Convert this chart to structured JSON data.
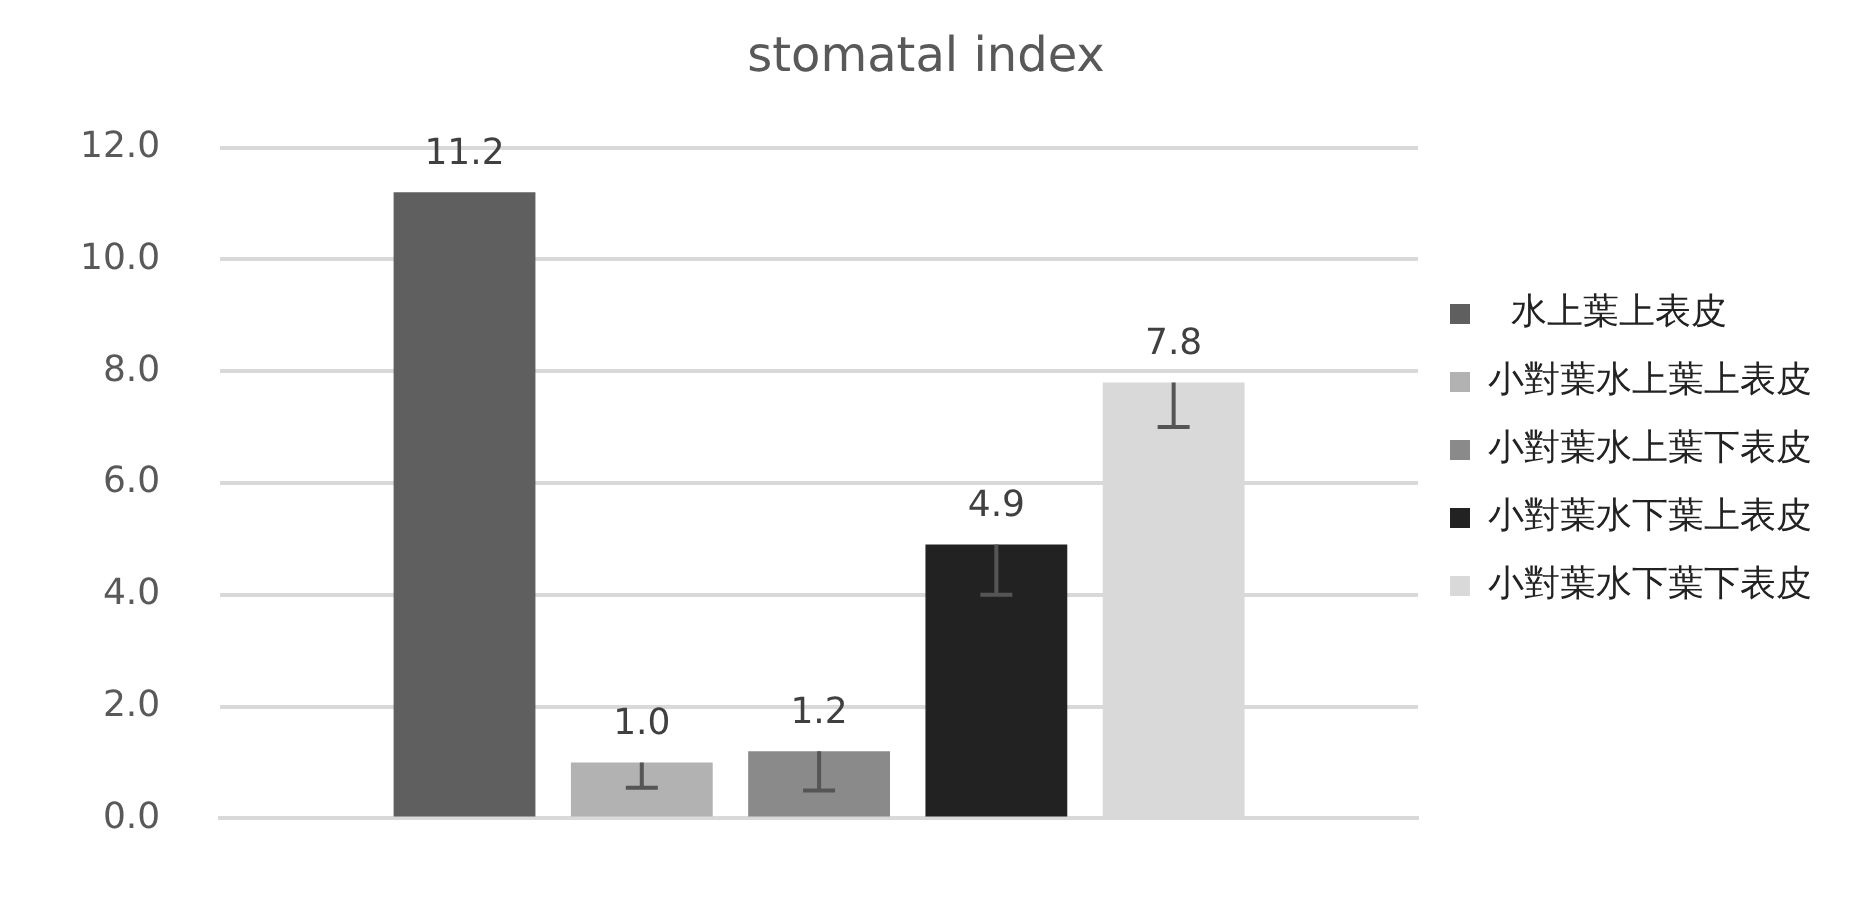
{
  "chart_data": {
    "type": "bar",
    "title": "stomatal index",
    "categories": [
      null
    ],
    "series": [
      {
        "name": "  水上葉上表皮",
        "color": "#5f5f5f",
        "values": [
          11.2
        ],
        "value_labels": [
          "11.2"
        ],
        "errors": [
          null
        ]
      },
      {
        "name": "小對葉水上葉上表皮",
        "color": "#b2b2b2",
        "values": [
          1.0
        ],
        "value_labels": [
          "1.0"
        ],
        "errors": [
          [
            0.55,
            1.0
          ]
        ]
      },
      {
        "name": "小對葉水上葉下表皮",
        "color": "#8a8a8a",
        "values": [
          1.2
        ],
        "value_labels": [
          "1.2"
        ],
        "errors": [
          [
            0.5,
            1.2
          ]
        ]
      },
      {
        "name": "小對葉水下葉上表皮",
        "color": "#222222",
        "values": [
          4.9
        ],
        "value_labels": [
          "4.9"
        ],
        "errors": [
          [
            4.0,
            4.9
          ]
        ]
      },
      {
        "name": "小對葉水下葉下表皮",
        "color": "#d9d9d9",
        "values": [
          7.8
        ],
        "value_labels": [
          "7.8"
        ],
        "errors": [
          [
            7.0,
            7.8
          ]
        ]
      }
    ],
    "ylim": [
      0,
      12
    ],
    "yticks": [
      {
        "value": 0,
        "label": "0.0"
      },
      {
        "value": 2,
        "label": "2.0"
      },
      {
        "value": 4,
        "label": "4.0"
      },
      {
        "value": 6,
        "label": "6.0"
      },
      {
        "value": 8,
        "label": "8.0"
      },
      {
        "value": 10,
        "label": "10.0"
      },
      {
        "value": 12,
        "label": "12.0"
      }
    ],
    "grid": "y",
    "legend": "right"
  }
}
